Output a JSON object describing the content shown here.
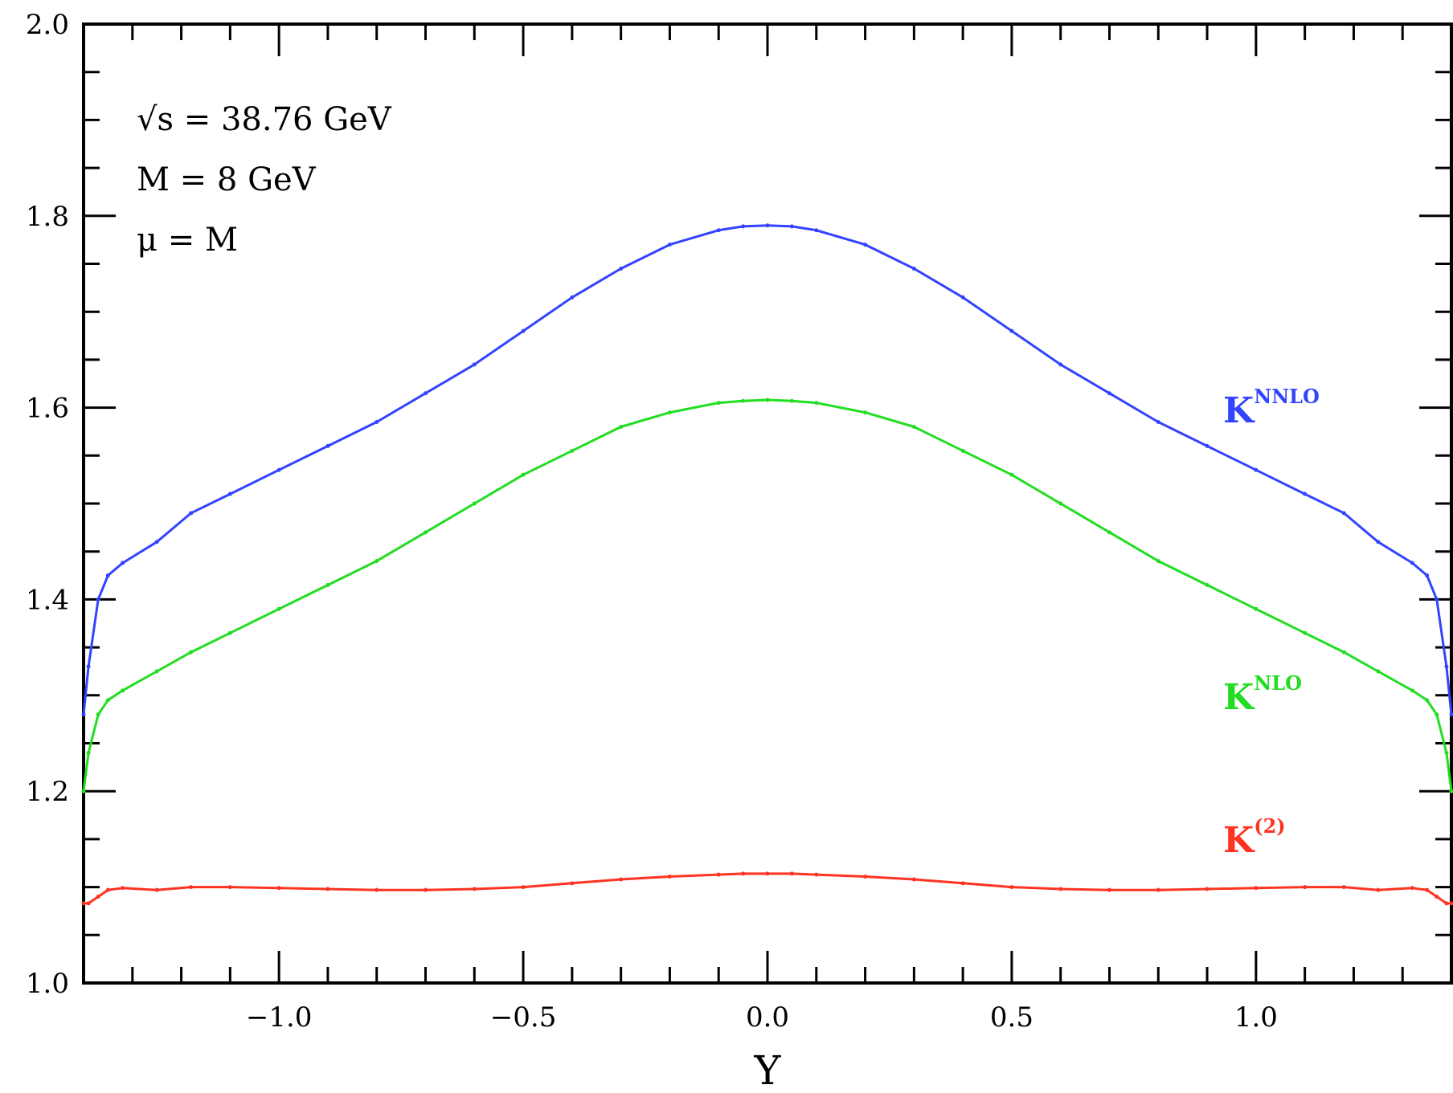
{
  "chart_data": {
    "type": "line",
    "xlabel": "Y",
    "ylabel": "",
    "xlim": [
      -1.4,
      1.4
    ],
    "ylim": [
      1.0,
      2.0
    ],
    "xticks": [
      -1.0,
      -0.5,
      0.0,
      0.5,
      1.0
    ],
    "xtick_labels": [
      "−1.0",
      "−0.5",
      "0.0",
      "0.5",
      "1.0"
    ],
    "yticks": [
      1.0,
      1.2,
      1.4,
      1.6,
      1.8,
      2.0
    ],
    "ytick_labels": [
      "1.0",
      "1.2",
      "1.4",
      "1.6",
      "1.8",
      "2.0"
    ],
    "annotations": [
      "√s = 38.76 GeV",
      "M = 8 GeV",
      "μ = M"
    ],
    "series": [
      {
        "name": "K^NNLO",
        "label_main": "K",
        "label_sup": "NNLO",
        "color": "#3344ff",
        "x": [
          -1.4,
          -1.39,
          -1.37,
          -1.35,
          -1.32,
          -1.25,
          -1.18,
          -1.1,
          -1.0,
          -0.9,
          -0.8,
          -0.7,
          -0.6,
          -0.5,
          -0.4,
          -0.3,
          -0.2,
          -0.1,
          -0.05,
          0.0,
          0.05,
          0.1,
          0.2,
          0.3,
          0.4,
          0.5,
          0.6,
          0.7,
          0.8,
          0.9,
          1.0,
          1.1,
          1.18,
          1.25,
          1.32,
          1.35,
          1.37,
          1.39,
          1.4
        ],
        "y": [
          1.28,
          1.33,
          1.4,
          1.425,
          1.438,
          1.46,
          1.49,
          1.51,
          1.535,
          1.56,
          1.585,
          1.615,
          1.645,
          1.68,
          1.715,
          1.745,
          1.77,
          1.785,
          1.789,
          1.79,
          1.789,
          1.785,
          1.77,
          1.745,
          1.715,
          1.68,
          1.645,
          1.615,
          1.585,
          1.56,
          1.535,
          1.51,
          1.49,
          1.46,
          1.438,
          1.425,
          1.4,
          1.33,
          1.28
        ]
      },
      {
        "name": "K^NLO",
        "label_main": "K",
        "label_sup": "NLO",
        "color": "#22dd22",
        "x": [
          -1.4,
          -1.39,
          -1.37,
          -1.35,
          -1.32,
          -1.25,
          -1.18,
          -1.1,
          -1.0,
          -0.9,
          -0.8,
          -0.7,
          -0.6,
          -0.5,
          -0.4,
          -0.3,
          -0.2,
          -0.1,
          -0.05,
          0.0,
          0.05,
          0.1,
          0.2,
          0.3,
          0.4,
          0.5,
          0.6,
          0.7,
          0.8,
          0.9,
          1.0,
          1.1,
          1.18,
          1.25,
          1.32,
          1.35,
          1.37,
          1.39,
          1.4
        ],
        "y": [
          1.2,
          1.24,
          1.28,
          1.295,
          1.305,
          1.325,
          1.345,
          1.365,
          1.39,
          1.415,
          1.44,
          1.47,
          1.5,
          1.53,
          1.555,
          1.58,
          1.595,
          1.605,
          1.607,
          1.608,
          1.607,
          1.605,
          1.595,
          1.58,
          1.555,
          1.53,
          1.5,
          1.47,
          1.44,
          1.415,
          1.39,
          1.365,
          1.345,
          1.325,
          1.305,
          1.295,
          1.28,
          1.24,
          1.2
        ]
      },
      {
        "name": "K^(2)",
        "label_main": "K",
        "label_sup": "(2)",
        "color": "#ff3322",
        "x": [
          -1.4,
          -1.39,
          -1.37,
          -1.35,
          -1.32,
          -1.25,
          -1.18,
          -1.1,
          -1.0,
          -0.9,
          -0.8,
          -0.7,
          -0.6,
          -0.5,
          -0.4,
          -0.3,
          -0.2,
          -0.1,
          -0.05,
          0.0,
          0.05,
          0.1,
          0.2,
          0.3,
          0.4,
          0.5,
          0.6,
          0.7,
          0.8,
          0.9,
          1.0,
          1.1,
          1.18,
          1.25,
          1.32,
          1.35,
          1.37,
          1.39,
          1.4
        ],
        "y": [
          1.083,
          1.083,
          1.09,
          1.097,
          1.099,
          1.097,
          1.1,
          1.1,
          1.099,
          1.098,
          1.097,
          1.097,
          1.098,
          1.1,
          1.104,
          1.108,
          1.111,
          1.113,
          1.114,
          1.114,
          1.114,
          1.113,
          1.111,
          1.108,
          1.104,
          1.1,
          1.098,
          1.097,
          1.097,
          1.098,
          1.099,
          1.1,
          1.1,
          1.097,
          1.099,
          1.097,
          1.09,
          1.083,
          1.083
        ]
      }
    ],
    "grid": false,
    "legend": "none"
  }
}
